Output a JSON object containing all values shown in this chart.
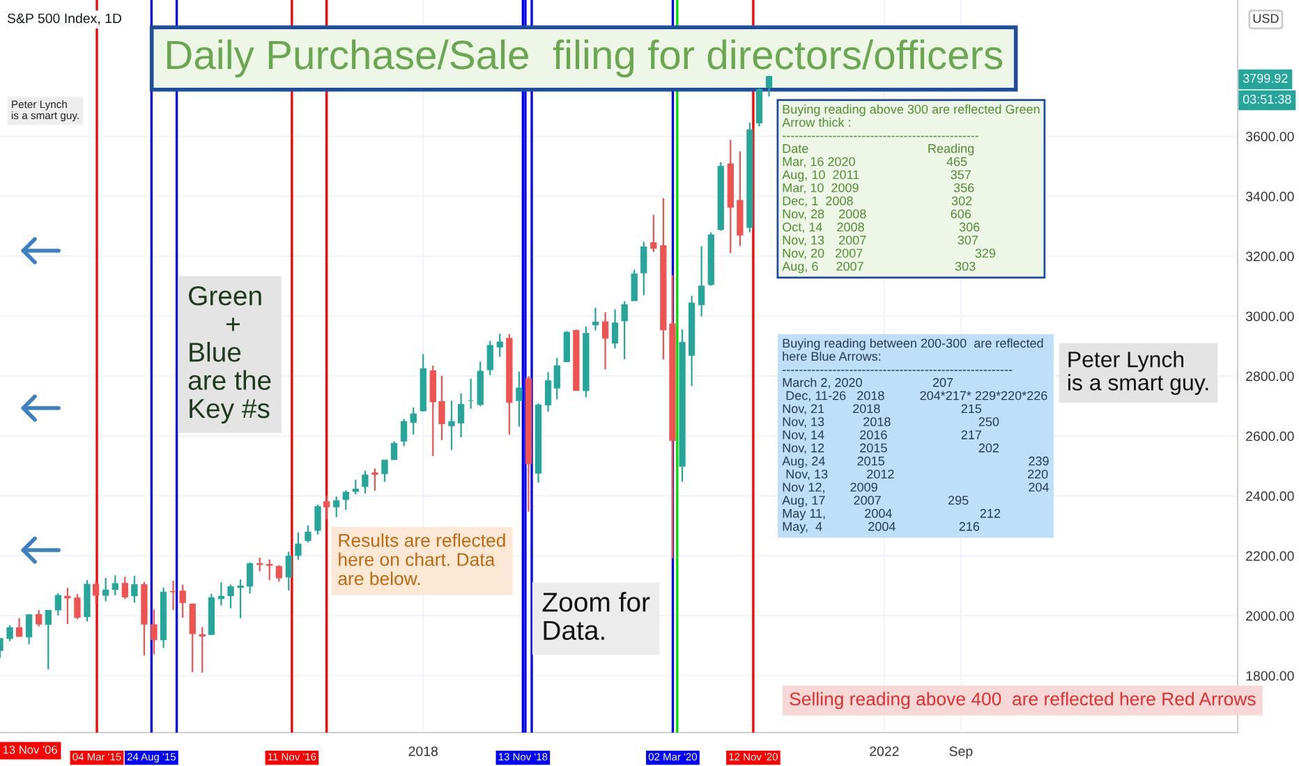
{
  "chart_data": {
    "type": "candlestick",
    "title": "Daily Purchase/Sale  filing for directors/officers",
    "subtitle": "S&P 500 Index, 1D",
    "x": [
      "2014-05",
      "2014-06",
      "2014-07",
      "2014-08",
      "2014-09",
      "2014-10",
      "2014-11",
      "2014-12",
      "2015-01",
      "2015-02",
      "2015-03",
      "2015-04",
      "2015-05",
      "2015-06",
      "2015-07",
      "2015-08",
      "2015-09",
      "2015-10",
      "2015-11",
      "2015-12",
      "2016-01",
      "2016-02",
      "2016-03",
      "2016-04",
      "2016-05",
      "2016-06",
      "2016-07",
      "2016-08",
      "2016-09",
      "2016-10",
      "2016-11",
      "2016-12",
      "2017-01",
      "2017-02",
      "2017-03",
      "2017-04",
      "2017-05",
      "2017-06",
      "2017-07",
      "2017-08",
      "2017-09",
      "2017-10",
      "2017-11",
      "2017-12",
      "2018-01",
      "2018-02",
      "2018-03",
      "2018-04",
      "2018-05",
      "2018-06",
      "2018-07",
      "2018-08",
      "2018-09",
      "2018-10",
      "2018-11",
      "2018-12",
      "2019-01",
      "2019-02",
      "2019-03",
      "2019-04",
      "2019-05",
      "2019-06",
      "2019-07",
      "2019-08",
      "2019-09",
      "2019-10",
      "2019-11",
      "2019-12",
      "2020-01",
      "2020-02",
      "2020-03",
      "2020-04",
      "2020-05",
      "2020-06",
      "2020-07",
      "2020-08",
      "2020-09",
      "2020-10",
      "2020-11",
      "2020-12",
      "2021-01"
    ],
    "ohlc": [
      [
        1884,
        1924,
        1859,
        1924
      ],
      [
        1924,
        1968,
        1915,
        1960
      ],
      [
        1960,
        1992,
        1930,
        1931
      ],
      [
        1929,
        2005,
        1905,
        2003
      ],
      [
        2004,
        2019,
        1964,
        1972
      ],
      [
        1971,
        2019,
        1821,
        2018
      ],
      [
        2019,
        2075,
        2001,
        2068
      ],
      [
        2065,
        2093,
        1972,
        2059
      ],
      [
        2059,
        2072,
        1988,
        1995
      ],
      [
        1997,
        2119,
        1981,
        2105
      ],
      [
        2105,
        2117,
        2040,
        2068
      ],
      [
        2068,
        2126,
        2048,
        2086
      ],
      [
        2088,
        2135,
        2068,
        2107
      ],
      [
        2108,
        2130,
        2056,
        2063
      ],
      [
        2067,
        2133,
        2044,
        2104
      ],
      [
        2104,
        2113,
        1867,
        1972
      ],
      [
        1970,
        2021,
        1871,
        1920
      ],
      [
        1920,
        2094,
        1893,
        2079
      ],
      [
        2081,
        2117,
        2019,
        2080
      ],
      [
        2082,
        2104,
        1993,
        2044
      ],
      [
        2039,
        2039,
        1812,
        1940
      ],
      [
        1937,
        1962,
        1810,
        1932
      ],
      [
        1937,
        2073,
        1937,
        2060
      ],
      [
        2057,
        2111,
        2034,
        2065
      ],
      [
        2067,
        2104,
        2025,
        2097
      ],
      [
        2094,
        2121,
        1992,
        2099
      ],
      [
        2099,
        2178,
        2074,
        2174
      ],
      [
        2174,
        2194,
        2148,
        2171
      ],
      [
        2171,
        2187,
        2119,
        2168
      ],
      [
        2164,
        2169,
        2114,
        2126
      ],
      [
        2129,
        2214,
        2084,
        2199
      ],
      [
        2201,
        2278,
        2187,
        2239
      ],
      [
        2251,
        2301,
        2245,
        2279
      ],
      [
        2285,
        2371,
        2271,
        2364
      ],
      [
        2381,
        2401,
        2322,
        2363
      ],
      [
        2363,
        2398,
        2329,
        2384
      ],
      [
        2388,
        2419,
        2353,
        2412
      ],
      [
        2415,
        2454,
        2405,
        2423
      ],
      [
        2431,
        2484,
        2408,
        2470
      ],
      [
        2477,
        2491,
        2417,
        2472
      ],
      [
        2474,
        2519,
        2447,
        2519
      ],
      [
        2521,
        2582,
        2520,
        2575
      ],
      [
        2583,
        2657,
        2566,
        2648
      ],
      [
        2645,
        2695,
        2605,
        2674
      ],
      [
        2684,
        2873,
        2682,
        2824
      ],
      [
        2817,
        2835,
        2533,
        2714
      ],
      [
        2715,
        2801,
        2586,
        2641
      ],
      [
        2634,
        2718,
        2553,
        2648
      ],
      [
        2643,
        2742,
        2595,
        2705
      ],
      [
        2718,
        2791,
        2691,
        2718
      ],
      [
        2705,
        2848,
        2699,
        2816
      ],
      [
        2821,
        2917,
        2803,
        2902
      ],
      [
        2897,
        2941,
        2864,
        2914
      ],
      [
        2926,
        2940,
        2604,
        2712
      ],
      [
        2718,
        2815,
        2631,
        2760
      ],
      [
        2791,
        2800,
        2347,
        2507
      ],
      [
        2476,
        2708,
        2444,
        2704
      ],
      [
        2703,
        2813,
        2681,
        2784
      ],
      [
        2760,
        2861,
        2722,
        2834
      ],
      [
        2848,
        2950,
        2848,
        2946
      ],
      [
        2952,
        2955,
        2751,
        2752
      ],
      [
        2751,
        2965,
        2729,
        2942
      ],
      [
        2971,
        3028,
        2952,
        2980
      ],
      [
        2981,
        3013,
        2822,
        2926
      ],
      [
        2910,
        3022,
        2892,
        2977
      ],
      [
        2984,
        3050,
        2856,
        3038
      ],
      [
        3051,
        3155,
        3051,
        3141
      ],
      [
        3144,
        3248,
        3070,
        3231
      ],
      [
        3245,
        3338,
        3214,
        3226
      ],
      [
        3235,
        3394,
        2855,
        2954
      ],
      [
        2974,
        3137,
        2192,
        2585
      ],
      [
        2499,
        2955,
        2447,
        2912
      ],
      [
        2869,
        3068,
        2767,
        3044
      ],
      [
        3038,
        3233,
        2999,
        3100
      ],
      [
        3105,
        3279,
        3101,
        3271
      ],
      [
        3289,
        3514,
        3285,
        3500
      ],
      [
        3508,
        3588,
        3210,
        3363
      ],
      [
        3386,
        3550,
        3234,
        3270
      ],
      [
        3296,
        3646,
        3280,
        3622
      ],
      [
        3645,
        3760,
        3633,
        3756
      ],
      [
        3764,
        3800,
        3733,
        3799.92
      ]
    ],
    "xlim": [
      "2014-05-01",
      "2025-01-25"
    ],
    "xticks": [
      {
        "value": "2018-01-01",
        "label": "2018"
      },
      {
        "value": "2022-01-01",
        "label": "2022"
      },
      {
        "value": "2022-09-01",
        "label": "Sep"
      }
    ],
    "ylim": [
      1610,
      4055
    ],
    "yticks": [
      {
        "value": 1800,
        "label": "1800.00"
      },
      {
        "value": 2000,
        "label": "2000.00"
      },
      {
        "value": 2200,
        "label": "2200.00"
      },
      {
        "value": 2400,
        "label": "2400.00"
      },
      {
        "value": 2600,
        "label": "2600.00"
      },
      {
        "value": 2800,
        "label": "2800.00"
      },
      {
        "value": 3000,
        "label": "3000.00"
      },
      {
        "value": 3200,
        "label": "3200.00"
      },
      {
        "value": 3400,
        "label": "3400.00"
      },
      {
        "value": 3600,
        "label": "3600.00"
      }
    ],
    "grid": true,
    "ref_lines": [
      {
        "axis": "x",
        "value": "2015-03-04",
        "label": "04 Mar '15",
        "color": "#ff0000"
      },
      {
        "axis": "x",
        "value": "2015-08-24",
        "label": "24 Aug '15",
        "color": "#0000ff"
      },
      {
        "axis": "x",
        "value": "2015-11-12",
        "label": null,
        "color": "#0000ff"
      },
      {
        "axis": "x",
        "value": "2016-11-11",
        "label": "11 Nov '16",
        "color": "#ff0000"
      },
      {
        "axis": "x",
        "value": "2017-03-01",
        "label": null,
        "color": "#ff0000"
      },
      {
        "axis": "x",
        "value": "2018-11-13",
        "label": "13 Nov '18",
        "color": "#0000ff"
      },
      {
        "axis": "x",
        "value": "2018-11-21",
        "label": null,
        "color": "#0000ff"
      },
      {
        "axis": "x",
        "value": "2018-12-11",
        "label": null,
        "color": "#0000ff"
      },
      {
        "axis": "x",
        "value": "2020-03-02",
        "label": "02 Mar '20",
        "color": "#0000ff"
      },
      {
        "axis": "x",
        "value": "2020-03-16",
        "label": null,
        "color": "#00dd00"
      },
      {
        "axis": "x",
        "value": "2020-11-12",
        "label": "12 Nov '20",
        "color": "#ff0000"
      }
    ],
    "annotations": [
      "Peter Lynch\nis a smart guy.",
      "Green\n     +\nBlue\nare the\nKey #s",
      "Results are reflected\nhere on chart. Data\nare below.",
      "Zoom for\nData.",
      "Buying reading above 300 are reflected Green\nArrow thick :\n-----------------------------------------------\nDate                                  Reading\nMar, 16 2020                          465\nAug, 10  2011                          357\nMar, 10  2009                           356\nDec, 1  2008                            302\nNov, 28    2008                        606\nOct, 14    2008                           306\nNov, 13    2007                          307\nNov, 20   2007                                329\nAug, 6     2007                          303",
      "Buying reading between 200-300  are reflected\nhere Blue Arrows:\n-------------------------------------------------------\nMarch 2, 2020                    207\n Dec, 11-26   2018          204*217* 229*220*226\nNov, 21        2018                       215\nNov, 13           2018                         250\nNov, 14          2016                     217\nNov, 12          2015                          202\nAug, 24         2015                                         239\n Nov, 13           2012                                      220\nNov 12,       2009                                           204\nAug, 17        2007                   295\nMay 11,           2004                         212\nMay,  4             2004                  216",
      "Peter Lynch\nis a smart guy.",
      "Selling reading above 400  are reflected here Red Arrows",
      "13 Nov '06",
      "3799.92",
      "03:51:38",
      "USD"
    ]
  }
}
